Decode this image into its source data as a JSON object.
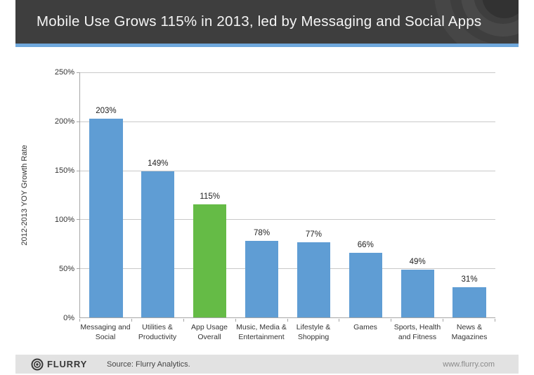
{
  "header": {
    "title": "Mobile Use Grows 115% in 2013, led by Messaging and Social Apps"
  },
  "chart_data": {
    "type": "bar",
    "title": "Mobile Use Grows 115% in 2013, led by Messaging and Social Apps",
    "xlabel": "",
    "ylabel": "2012-2013 YOY Growth Rate",
    "ylim": [
      0,
      250
    ],
    "ytick_labels": [
      "250%",
      "200%",
      "150%",
      "100%",
      "50%",
      "0%"
    ],
    "grid": true,
    "legend": "none",
    "categories": [
      "Messaging and\nSocial",
      "Utilities &\nProductivity",
      "App Usage\nOverall",
      "Music, Media &\nEntertainment",
      "Lifestyle &\nShopping",
      "Games",
      "Sports, Health\nand Fitness",
      "News &\nMagazines"
    ],
    "values": [
      203,
      149,
      115,
      78,
      77,
      66,
      49,
      31
    ],
    "value_labels": [
      "203%",
      "149%",
      "115%",
      "78%",
      "77%",
      "66%",
      "49%",
      "31%"
    ],
    "highlight_index": 2,
    "bar_colors": {
      "default": "#5f9dd4",
      "highlight": "#65bb46"
    }
  },
  "footer": {
    "brand": "FLURRY",
    "source": "Source: Flurry Analytics.",
    "website": "www.flurry.com"
  },
  "colors": {
    "header_bg": "#3e3e3e",
    "header_text": "#f5f5f5",
    "accent_strip": "#6fa8dc",
    "bar_blue": "#5f9dd4",
    "bar_green": "#65bb46",
    "gridline": "#c9c9c9",
    "axis": "#a6a6a6",
    "footer_bg": "#e2e2e2"
  }
}
